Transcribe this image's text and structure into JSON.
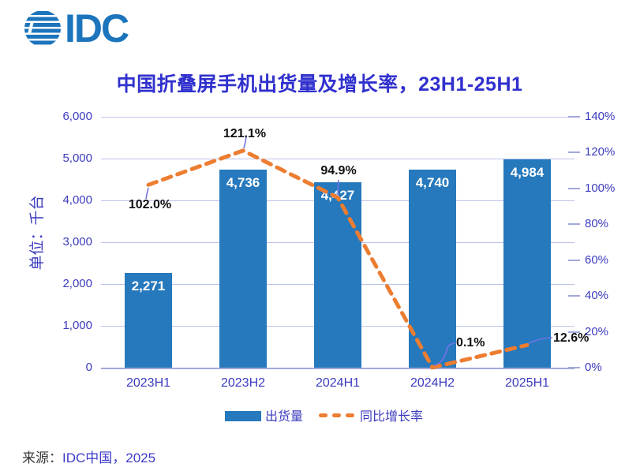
{
  "logo": {
    "text": "IDC"
  },
  "title": "中国折叠屏手机出货量及增长率，23H1-25H1",
  "chart_data": {
    "type": "bar+line combo",
    "categories": [
      "2023H1",
      "2023H2",
      "2024H1",
      "2024H2",
      "2025H1"
    ],
    "series": [
      {
        "name": "出货量",
        "type": "bar",
        "axis": "left",
        "values": [
          2271,
          4736,
          4427,
          4740,
          4984
        ],
        "labels": [
          "2,271",
          "4,736",
          "4,427",
          "4,740",
          "4,984"
        ]
      },
      {
        "name": "同比增长率",
        "type": "line",
        "style": "dashed",
        "axis": "right",
        "values": [
          102.0,
          121.1,
          94.9,
          0.1,
          12.6
        ],
        "labels": [
          "102.0%",
          "121.1%",
          "94.9%",
          "0.1%",
          "12.6%"
        ]
      }
    ],
    "left_axis": {
      "title": "单位：千台",
      "min": 0,
      "max": 6000,
      "ticks": [
        "6,000",
        "5,000",
        "4,000",
        "3,000",
        "2,000",
        "1,000",
        "0"
      ]
    },
    "right_axis": {
      "min": "0%",
      "max": "140%",
      "ticks": [
        "140%",
        "120%",
        "100%",
        "80%",
        "60%",
        "40%",
        "20%",
        "0%"
      ]
    },
    "grid": "horizontal",
    "legend_position": "bottom"
  },
  "legend": {
    "items": [
      {
        "label": "出货量",
        "marker": "bar"
      },
      {
        "label": "同比增长率",
        "marker": "dashed-line"
      }
    ]
  },
  "source": {
    "prefix": "来源：",
    "text": "IDC中国，2025"
  },
  "colors": {
    "bar": "#2679BC",
    "line": "#ED7D31",
    "logo": "#1C75BC",
    "title": "#3030CE",
    "axis_text": "#3B3BBF",
    "grid": "#BDC3E9",
    "baseline": "#A2A8DA",
    "bar_label": "#FFFFFF",
    "data_label": "#111111",
    "leader": "#7373E8",
    "source_prefix": "#3A3A3A",
    "source_text": "#3B3BC8"
  }
}
